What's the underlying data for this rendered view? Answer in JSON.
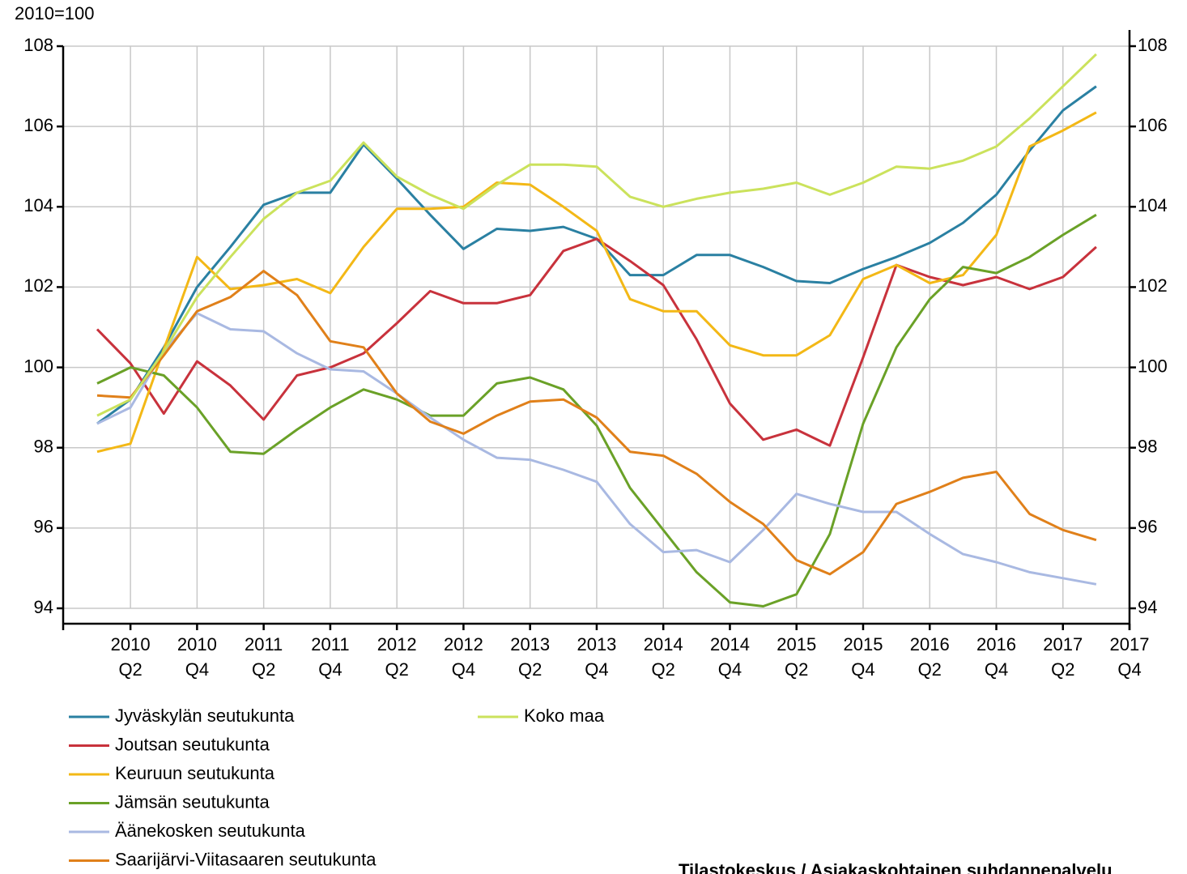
{
  "chart_data": {
    "type": "line",
    "ylabel": "2010=100",
    "source": "Tilastokeskus / Asiakaskohtainen suhdannepalvelu",
    "categories": [
      null,
      "2010\nQ2",
      null,
      "2010\nQ4",
      null,
      "2011\nQ2",
      null,
      "2011\nQ4",
      null,
      "2012\nQ2",
      null,
      "2012\nQ4",
      null,
      "2013\nQ2",
      null,
      "2013\nQ4",
      null,
      "2014\nQ2",
      null,
      "2014\nQ4",
      null,
      "2015\nQ2",
      null,
      "2015\nQ4",
      null,
      "2016\nQ2",
      null,
      "2016\nQ4",
      null,
      "2017\nQ2",
      null,
      "2017\nQ4"
    ],
    "ylim": [
      94,
      108
    ],
    "yticks": [
      94,
      96,
      98,
      100,
      102,
      104,
      106,
      108
    ],
    "y2lim": [
      94,
      108
    ],
    "y2ticks": [
      94,
      96,
      98,
      100,
      102,
      104,
      106,
      108
    ],
    "grid": true,
    "series": [
      {
        "name": "Jyväskylän seutukunta",
        "color": "#2a80a2",
        "values": [
          98.6,
          99.2,
          100.5,
          102.0,
          103.0,
          104.05,
          104.35,
          104.35,
          105.55,
          104.7,
          103.8,
          102.95,
          103.45,
          103.4,
          103.5,
          103.2,
          102.3,
          102.3,
          102.8,
          102.8,
          102.5,
          102.15,
          102.1,
          102.45,
          102.75,
          103.1,
          103.6,
          104.3,
          105.4,
          106.4,
          107.0,
          null
        ]
      },
      {
        "name": "Joutsan seutukunta",
        "color": "#c8323c",
        "values": [
          100.95,
          100.1,
          98.85,
          100.15,
          99.55,
          98.7,
          99.8,
          100.0,
          100.35,
          101.1,
          101.9,
          101.6,
          101.6,
          101.8,
          102.9,
          103.2,
          102.65,
          102.05,
          100.7,
          99.1,
          98.2,
          98.45,
          98.05,
          100.25,
          102.55,
          102.25,
          102.05,
          102.25,
          101.95,
          102.25,
          103.0,
          null
        ]
      },
      {
        "name": "Keuruun seutukunta",
        "color": "#f3b816",
        "values": [
          97.9,
          98.1,
          100.45,
          102.75,
          101.95,
          102.05,
          102.2,
          101.85,
          103.0,
          103.95,
          103.95,
          104.0,
          104.6,
          104.55,
          104.0,
          103.4,
          101.7,
          101.4,
          101.4,
          100.55,
          100.3,
          100.3,
          100.8,
          102.2,
          102.55,
          102.1,
          102.3,
          103.3,
          105.5,
          105.9,
          106.35,
          null
        ]
      },
      {
        "name": "Jämsän seutukunta",
        "color": "#6aa127",
        "values": [
          99.6,
          100.0,
          99.8,
          99.0,
          97.9,
          97.85,
          98.45,
          99.0,
          99.45,
          99.2,
          98.8,
          98.8,
          99.6,
          99.75,
          99.45,
          98.55,
          97.0,
          95.95,
          94.9,
          94.15,
          94.05,
          94.35,
          95.85,
          98.6,
          100.5,
          101.7,
          102.5,
          102.35,
          102.75,
          103.3,
          103.8,
          null
        ]
      },
      {
        "name": "Äänekosken seutukunta",
        "color": "#a9b9e2",
        "values": [
          98.6,
          99.0,
          100.4,
          101.35,
          100.95,
          100.9,
          100.35,
          99.95,
          99.9,
          99.35,
          98.75,
          98.2,
          97.75,
          97.7,
          97.45,
          97.15,
          96.1,
          95.4,
          95.45,
          95.15,
          95.95,
          96.85,
          96.6,
          96.4,
          96.4,
          95.85,
          95.35,
          95.15,
          94.9,
          94.75,
          94.6,
          null
        ]
      },
      {
        "name": "Saarijärvi-Viitasaaren seutukunta",
        "color": "#e0801a",
        "values": [
          99.3,
          99.25,
          100.3,
          101.4,
          101.75,
          102.4,
          101.8,
          100.65,
          100.5,
          99.35,
          98.65,
          98.35,
          98.8,
          99.15,
          99.2,
          98.75,
          97.9,
          97.8,
          97.35,
          96.65,
          96.1,
          95.2,
          94.85,
          95.4,
          96.6,
          96.9,
          97.25,
          97.4,
          96.35,
          95.95,
          95.7,
          null
        ]
      },
      {
        "name": "Koko maa",
        "color": "#cbe25c",
        "values": [
          98.8,
          99.2,
          100.4,
          101.75,
          102.75,
          103.7,
          104.35,
          104.65,
          105.6,
          104.75,
          104.3,
          103.95,
          104.55,
          105.05,
          105.05,
          105.0,
          104.25,
          104.0,
          104.2,
          104.35,
          104.45,
          104.6,
          104.3,
          104.6,
          105.0,
          104.95,
          105.15,
          105.5,
          106.2,
          107.0,
          107.8,
          null
        ]
      }
    ]
  }
}
